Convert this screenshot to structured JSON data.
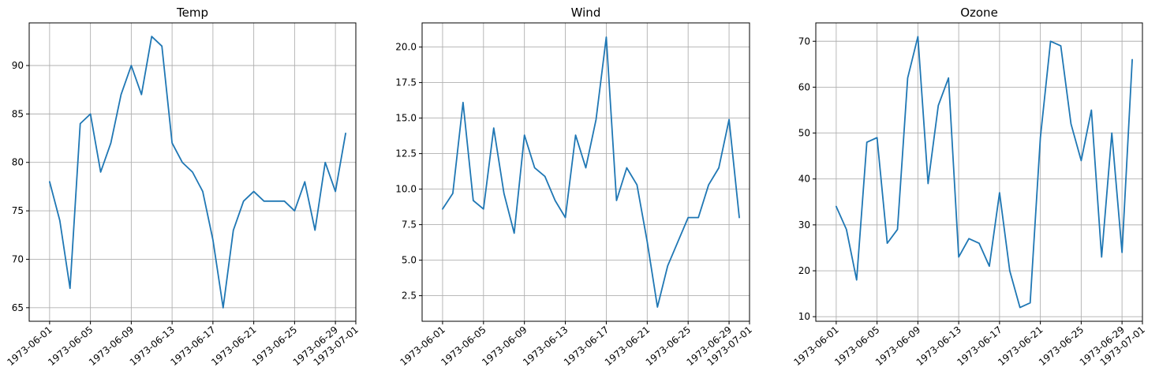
{
  "colors": {
    "line": "#1f77b4",
    "grid": "#b0b0b0",
    "axes": "#000000",
    "background": "#ffffff"
  },
  "chart_data": [
    {
      "type": "line",
      "title": "Temp",
      "xlabel": "",
      "ylabel": "",
      "grid": true,
      "x_ticks": [
        "1973-06-01",
        "1973-06-05",
        "1973-06-09",
        "1973-06-13",
        "1973-06-17",
        "1973-06-21",
        "1973-06-25",
        "1973-06-29",
        "1973-07-01"
      ],
      "y_ticks": [
        "65",
        "70",
        "75",
        "80",
        "85",
        "90"
      ],
      "xlim": [
        "1973-05-30",
        "1973-07-01"
      ],
      "ylim": [
        63.6,
        94.4
      ],
      "x": [
        "1973-06-01",
        "1973-06-02",
        "1973-06-03",
        "1973-06-04",
        "1973-06-05",
        "1973-06-06",
        "1973-06-07",
        "1973-06-08",
        "1973-06-09",
        "1973-06-10",
        "1973-06-11",
        "1973-06-12",
        "1973-06-13",
        "1973-06-14",
        "1973-06-15",
        "1973-06-16",
        "1973-06-17",
        "1973-06-18",
        "1973-06-19",
        "1973-06-20",
        "1973-06-21",
        "1973-06-22",
        "1973-06-23",
        "1973-06-24",
        "1973-06-25",
        "1973-06-26",
        "1973-06-27",
        "1973-06-28",
        "1973-06-29",
        "1973-06-30"
      ],
      "series": [
        {
          "values": [
            78,
            74,
            67,
            84,
            85,
            79,
            82,
            87,
            90,
            87,
            93,
            92,
            82,
            80,
            79,
            77,
            72,
            65,
            73,
            76,
            77,
            76,
            76,
            76,
            75,
            78,
            73,
            80,
            77,
            83
          ]
        }
      ]
    },
    {
      "type": "line",
      "title": "Wind",
      "xlabel": "",
      "ylabel": "",
      "grid": true,
      "x_ticks": [
        "1973-06-01",
        "1973-06-05",
        "1973-06-09",
        "1973-06-13",
        "1973-06-17",
        "1973-06-21",
        "1973-06-25",
        "1973-06-29",
        "1973-07-01"
      ],
      "y_ticks": [
        "2.5",
        "5.0",
        "7.5",
        "10.0",
        "12.5",
        "15.0",
        "17.5",
        "20.0"
      ],
      "xlim": [
        "1973-05-30",
        "1973-07-01"
      ],
      "ylim": [
        0.7,
        21.7
      ],
      "x": [
        "1973-06-01",
        "1973-06-02",
        "1973-06-03",
        "1973-06-04",
        "1973-06-05",
        "1973-06-06",
        "1973-06-07",
        "1973-06-08",
        "1973-06-09",
        "1973-06-10",
        "1973-06-11",
        "1973-06-12",
        "1973-06-13",
        "1973-06-14",
        "1973-06-15",
        "1973-06-16",
        "1973-06-17",
        "1973-06-18",
        "1973-06-19",
        "1973-06-20",
        "1973-06-21",
        "1973-06-22",
        "1973-06-23",
        "1973-06-24",
        "1973-06-25",
        "1973-06-26",
        "1973-06-27",
        "1973-06-28",
        "1973-06-29",
        "1973-06-30"
      ],
      "series": [
        {
          "values": [
            8.6,
            9.7,
            16.1,
            9.2,
            8.6,
            14.3,
            9.7,
            6.9,
            13.8,
            11.5,
            10.9,
            9.2,
            8.0,
            13.8,
            11.5,
            14.9,
            20.7,
            9.2,
            11.5,
            10.3,
            6.3,
            1.7,
            4.6,
            6.3,
            8.0,
            8.0,
            10.3,
            11.5,
            14.9,
            8.0
          ]
        }
      ]
    },
    {
      "type": "line",
      "title": "Ozone",
      "xlabel": "",
      "ylabel": "",
      "grid": true,
      "x_ticks": [
        "1973-06-01",
        "1973-06-05",
        "1973-06-09",
        "1973-06-13",
        "1973-06-17",
        "1973-06-21",
        "1973-06-25",
        "1973-06-29",
        "1973-07-01"
      ],
      "y_ticks": [
        "10",
        "20",
        "30",
        "40",
        "50",
        "60",
        "70"
      ],
      "xlim": [
        "1973-05-30",
        "1973-07-01"
      ],
      "ylim": [
        9.0,
        74.0
      ],
      "x": [
        "1973-06-01",
        "1973-06-02",
        "1973-06-03",
        "1973-06-04",
        "1973-06-05",
        "1973-06-06",
        "1973-06-07",
        "1973-06-08",
        "1973-06-09",
        "1973-06-10",
        "1973-06-11",
        "1973-06-12",
        "1973-06-13",
        "1973-06-14",
        "1973-06-15",
        "1973-06-16",
        "1973-06-17",
        "1973-06-18",
        "1973-06-19",
        "1973-06-20",
        "1973-06-21",
        "1973-06-22",
        "1973-06-23",
        "1973-06-24",
        "1973-06-25",
        "1973-06-26",
        "1973-06-27",
        "1973-06-28",
        "1973-06-29",
        "1973-06-30"
      ],
      "series": [
        {
          "values": [
            34,
            29,
            18,
            48,
            49,
            26,
            29,
            62,
            71,
            39,
            56,
            62,
            23,
            27,
            26,
            21,
            37,
            20,
            12,
            13,
            49,
            70,
            69,
            52,
            44,
            55,
            23,
            50,
            24,
            66
          ]
        }
      ]
    }
  ]
}
